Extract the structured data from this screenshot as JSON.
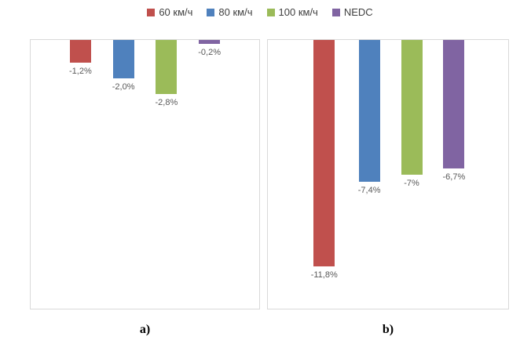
{
  "legend": {
    "position": "top",
    "items": [
      {
        "label": "60 км/ч",
        "color": "#C0504D"
      },
      {
        "label": "80 км/ч",
        "color": "#4F81BD"
      },
      {
        "label": "100 км/ч",
        "color": "#9BBB59"
      },
      {
        "label": "NEDC",
        "color": "#8064A2"
      }
    ]
  },
  "chart_data": [
    {
      "type": "bar",
      "title": "a)",
      "categories": [
        "60 км/ч",
        "80 км/ч",
        "100 км/ч",
        "NEDC"
      ],
      "values": [
        -1.2,
        -2.0,
        -2.8,
        -0.2
      ],
      "data_labels": [
        "-1,2%",
        "-2,0%",
        "-2,8%",
        "-0,2%"
      ],
      "ylim": [
        -14,
        0
      ],
      "grid": false,
      "legend_position": "top"
    },
    {
      "type": "bar",
      "title": "b)",
      "categories": [
        "60 км/ч",
        "80 км/ч",
        "100 км/ч",
        "NEDC"
      ],
      "values": [
        -11.8,
        -7.4,
        -7,
        -6.7
      ],
      "data_labels": [
        "-11,8%",
        "-7,4%",
        "-7%",
        "-6,7%"
      ],
      "ylim": [
        -14,
        0
      ],
      "grid": false,
      "legend_position": "top"
    }
  ]
}
